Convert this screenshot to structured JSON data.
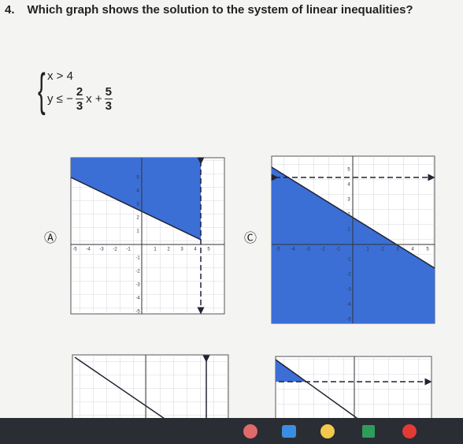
{
  "question": {
    "number": "4.",
    "text": "Which graph shows the solution to the system of linear inequalities?"
  },
  "system": {
    "line1": "x > 4",
    "line2_start": "y ≤ −",
    "fraction1": {
      "num": "2",
      "den": "3"
    },
    "line2_mid": "x +",
    "fraction2": {
      "num": "5",
      "den": "3"
    }
  },
  "options": [
    {
      "label": "Ⓐ",
      "x_ticks": [
        "-5",
        "-4",
        "-3",
        "-2",
        "-1",
        "1",
        "2",
        "3",
        "4",
        "5"
      ],
      "y_ticks": [
        "5",
        "4",
        "3",
        "2",
        "1",
        "-1",
        "-2",
        "-3",
        "-4",
        "-5"
      ]
    },
    {
      "label": "Ⓒ",
      "x_ticks": [
        "-5",
        "-4",
        "-3",
        "-2",
        "-1",
        "1",
        "2",
        "3",
        "4",
        "5"
      ],
      "y_ticks": [
        "5",
        "4",
        "3",
        "2",
        "1",
        "-1",
        "-2",
        "-3",
        "-4",
        "-5"
      ]
    }
  ]
}
